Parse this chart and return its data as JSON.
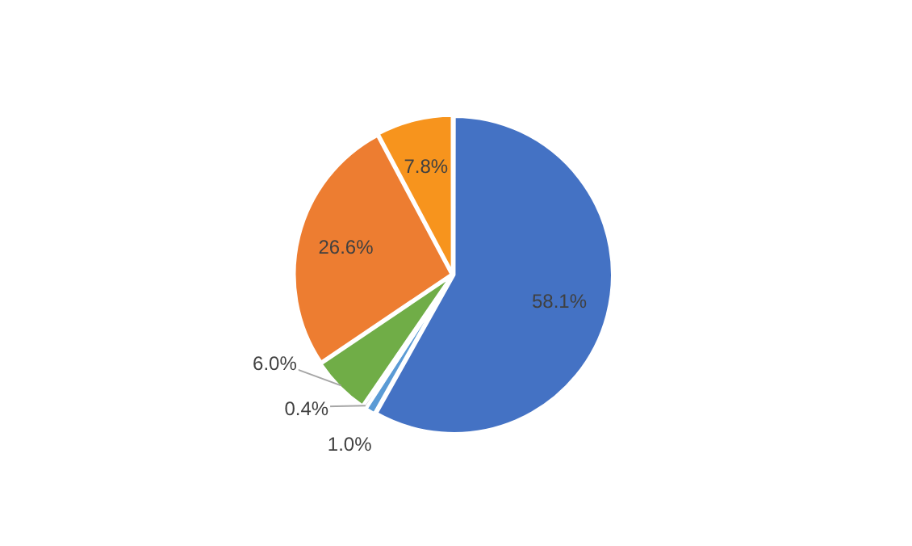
{
  "chart_data": {
    "type": "pie",
    "categories": [
      null,
      null,
      null,
      null,
      null,
      null
    ],
    "values": [
      58.1,
      1.0,
      0.4,
      6.0,
      26.6,
      7.8
    ],
    "colors": [
      "#4472c4",
      "#5b9bd5",
      "#a5a5a5",
      "#70ad47",
      "#ed7d31",
      "#f7941d"
    ],
    "value_labels": [
      "58.1%",
      "1.0%",
      "0.4%",
      "6.0%",
      "26.6%",
      "7.8%"
    ],
    "legend": false
  }
}
